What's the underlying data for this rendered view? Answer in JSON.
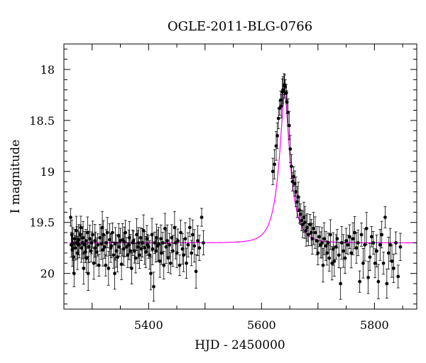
{
  "chart_data": {
    "type": "scatter",
    "title": "OGLE-2011-BLG-0766",
    "xlabel": "HJD - 2450000",
    "ylabel": "I magnitude",
    "xlim": [
      5250,
      5875
    ],
    "ylim": [
      20.35,
      17.75
    ],
    "y_axis_inverted": true,
    "grid": false,
    "legend": "none",
    "x_ticks": [
      {
        "value": 5400,
        "label": "5400"
      },
      {
        "value": 5600,
        "label": "5600"
      },
      {
        "value": 5800,
        "label": "5800"
      }
    ],
    "y_ticks": [
      {
        "value": 18,
        "label": "18"
      },
      {
        "value": 18.5,
        "label": "18.5"
      },
      {
        "value": 19,
        "label": "19"
      },
      {
        "value": 19.5,
        "label": "19.5"
      },
      {
        "value": 20,
        "label": "20"
      }
    ],
    "colors": {
      "points": "#000000",
      "model": "#ff00ff",
      "axes": "#000000"
    },
    "model": {
      "baseline_mag": 19.7,
      "t0": 5641,
      "u0": 0.27,
      "tE": 22
    },
    "series": [
      {
        "kind": "observations",
        "points": [
          [
            5262,
            19.45
          ],
          [
            5263,
            19.72
          ],
          [
            5264,
            19.62
          ],
          [
            5265,
            19.77
          ],
          [
            5266,
            19.71
          ],
          [
            5267,
            19.84
          ],
          [
            5268,
            20.0
          ],
          [
            5269,
            19.66
          ],
          [
            5270,
            19.75
          ],
          [
            5272,
            19.58
          ],
          [
            5273,
            19.7
          ],
          [
            5274,
            19.8
          ],
          [
            5276,
            19.67
          ],
          [
            5277,
            19.72
          ],
          [
            5279,
            19.62
          ],
          [
            5280,
            19.55
          ],
          [
            5281,
            19.75
          ],
          [
            5283,
            19.7
          ],
          [
            5284,
            19.65
          ],
          [
            5285,
            19.95
          ],
          [
            5287,
            19.72
          ],
          [
            5288,
            19.79
          ],
          [
            5289,
            19.68
          ],
          [
            5290,
            19.85
          ],
          [
            5292,
            19.6
          ],
          [
            5293,
            20.0
          ],
          [
            5294,
            19.74
          ],
          [
            5296,
            19.66
          ],
          [
            5298,
            19.78
          ],
          [
            5299,
            19.7
          ],
          [
            5301,
            19.62
          ],
          [
            5303,
            19.9
          ],
          [
            5305,
            19.68
          ],
          [
            5306,
            19.75
          ],
          [
            5308,
            19.79
          ],
          [
            5310,
            19.72
          ],
          [
            5312,
            19.92
          ],
          [
            5314,
            19.65
          ],
          [
            5316,
            19.71
          ],
          [
            5318,
            19.55
          ],
          [
            5319,
            19.77
          ],
          [
            5320,
            19.62
          ],
          [
            5322,
            19.74
          ],
          [
            5324,
            19.92
          ],
          [
            5325,
            19.7
          ],
          [
            5327,
            19.6
          ],
          [
            5329,
            19.95
          ],
          [
            5331,
            19.67
          ],
          [
            5333,
            19.75
          ],
          [
            5334,
            19.73
          ],
          [
            5336,
            19.6
          ],
          [
            5338,
            19.82
          ],
          [
            5340,
            20.0
          ],
          [
            5341,
            19.71
          ],
          [
            5343,
            19.78
          ],
          [
            5345,
            19.84
          ],
          [
            5347,
            19.63
          ],
          [
            5348,
            19.74
          ],
          [
            5350,
            19.68
          ],
          [
            5352,
            19.91
          ],
          [
            5354,
            19.67
          ],
          [
            5356,
            19.76
          ],
          [
            5357,
            19.69
          ],
          [
            5359,
            19.6
          ],
          [
            5361,
            19.74
          ],
          [
            5363,
            19.82
          ],
          [
            5365,
            19.72
          ],
          [
            5366,
            19.65
          ],
          [
            5368,
            19.78
          ],
          [
            5370,
            19.95
          ],
          [
            5372,
            19.7
          ],
          [
            5373,
            19.68
          ],
          [
            5375,
            19.78
          ],
          [
            5377,
            19.85
          ],
          [
            5379,
            19.62
          ],
          [
            5381,
            19.74
          ],
          [
            5382,
            19.7
          ],
          [
            5384,
            19.82
          ],
          [
            5386,
            19.65
          ],
          [
            5387,
            19.76
          ],
          [
            5389,
            19.7
          ],
          [
            5391,
            19.58
          ],
          [
            5393,
            19.75
          ],
          [
            5395,
            19.79
          ],
          [
            5397,
            19.66
          ],
          [
            5398,
            19.72
          ],
          [
            5400,
            19.74
          ],
          [
            5402,
            19.82
          ],
          [
            5404,
            20.0
          ],
          [
            5406,
            19.62
          ],
          [
            5407,
            19.76
          ],
          [
            5409,
            20.13
          ],
          [
            5411,
            19.7
          ],
          [
            5413,
            19.78
          ],
          [
            5414,
            19.65
          ],
          [
            5416,
            19.73
          ],
          [
            5418,
            19.71
          ],
          [
            5420,
            19.88
          ],
          [
            5422,
            19.66
          ],
          [
            5423,
            19.8
          ],
          [
            5425,
            19.7
          ],
          [
            5427,
            19.92
          ],
          [
            5429,
            19.56
          ],
          [
            5431,
            19.74
          ],
          [
            5433,
            19.68
          ],
          [
            5435,
            19.85
          ],
          [
            5437,
            19.72
          ],
          [
            5439,
            19.9
          ],
          [
            5441,
            19.65
          ],
          [
            5443,
            19.78
          ],
          [
            5446,
            19.55
          ],
          [
            5448,
            19.7
          ],
          [
            5450,
            19.8
          ],
          [
            5452,
            19.68
          ],
          [
            5455,
            19.92
          ],
          [
            5457,
            19.6
          ],
          [
            5460,
            19.76
          ],
          [
            5462,
            19.82
          ],
          [
            5465,
            19.66
          ],
          [
            5467,
            19.9
          ],
          [
            5470,
            19.72
          ],
          [
            5473,
            19.55
          ],
          [
            5476,
            19.8
          ],
          [
            5478,
            19.62
          ],
          [
            5481,
            19.73
          ],
          [
            5484,
            19.98
          ],
          [
            5487,
            19.68
          ],
          [
            5490,
            19.75
          ],
          [
            5494,
            19.45
          ],
          [
            5497,
            19.7
          ],
          [
            5620,
            19.0
          ],
          [
            5623,
            18.93
          ],
          [
            5626,
            18.75
          ],
          [
            5628,
            18.65
          ],
          [
            5630,
            18.48
          ],
          [
            5632,
            18.38
          ],
          [
            5634,
            18.3
          ],
          [
            5635,
            18.36
          ],
          [
            5637,
            18.22
          ],
          [
            5638,
            18.2
          ],
          [
            5640,
            18.16
          ],
          [
            5641,
            18.15
          ],
          [
            5642,
            18.17
          ],
          [
            5644,
            18.23
          ],
          [
            5645,
            18.32
          ],
          [
            5647,
            18.42
          ],
          [
            5649,
            18.55
          ],
          [
            5651,
            18.78
          ],
          [
            5653,
            18.95
          ],
          [
            5655,
            19.1
          ],
          [
            5657,
            19.05
          ],
          [
            5659,
            19.12
          ],
          [
            5661,
            19.2
          ],
          [
            5663,
            19.3
          ],
          [
            5665,
            19.25
          ],
          [
            5667,
            19.38
          ],
          [
            5669,
            19.42
          ],
          [
            5671,
            19.48
          ],
          [
            5673,
            19.52
          ],
          [
            5675,
            19.45
          ],
          [
            5677,
            19.5
          ],
          [
            5679,
            19.58
          ],
          [
            5681,
            19.55
          ],
          [
            5683,
            19.62
          ],
          [
            5686,
            19.52
          ],
          [
            5688,
            19.6
          ],
          [
            5690,
            19.66
          ],
          [
            5692,
            19.56
          ],
          [
            5695,
            19.6
          ],
          [
            5698,
            19.68
          ],
          [
            5700,
            19.8
          ],
          [
            5702,
            19.64
          ],
          [
            5705,
            19.72
          ],
          [
            5707,
            19.7
          ],
          [
            5709,
            19.92
          ],
          [
            5711,
            19.66
          ],
          [
            5714,
            19.73
          ],
          [
            5716,
            19.8
          ],
          [
            5718,
            19.7
          ],
          [
            5720,
            19.85
          ],
          [
            5722,
            19.62
          ],
          [
            5725,
            19.9
          ],
          [
            5727,
            19.76
          ],
          [
            5729,
            19.88
          ],
          [
            5732,
            19.74
          ],
          [
            5734,
            19.66
          ],
          [
            5737,
            19.82
          ],
          [
            5740,
            20.1
          ],
          [
            5742,
            19.7
          ],
          [
            5745,
            19.78
          ],
          [
            5748,
            19.85
          ],
          [
            5750,
            19.68
          ],
          [
            5753,
            19.72
          ],
          [
            5756,
            19.64
          ],
          [
            5759,
            19.8
          ],
          [
            5762,
            19.66
          ],
          [
            5765,
            19.6
          ],
          [
            5768,
            19.75
          ],
          [
            5771,
            19.7
          ],
          [
            5774,
            20.08
          ],
          [
            5777,
            19.62
          ],
          [
            5780,
            19.9
          ],
          [
            5783,
            19.72
          ],
          [
            5786,
            19.56
          ],
          [
            5789,
            20.04
          ],
          [
            5792,
            19.84
          ],
          [
            5795,
            19.64
          ],
          [
            5798,
            19.7
          ],
          [
            5801,
            19.9
          ],
          [
            5804,
            19.78
          ],
          [
            5807,
            20.08
          ],
          [
            5810,
            19.72
          ],
          [
            5813,
            19.62
          ],
          [
            5816,
            19.9
          ],
          [
            5819,
            19.45
          ],
          [
            5822,
            20.1
          ],
          [
            5825,
            19.8
          ],
          [
            5828,
            19.72
          ],
          [
            5831,
            19.88
          ],
          [
            5834,
            19.95
          ],
          [
            5838,
            19.7
          ],
          [
            5842,
            20.03
          ],
          [
            5846,
            19.74
          ]
        ]
      },
      {
        "kind": "model"
      }
    ]
  }
}
